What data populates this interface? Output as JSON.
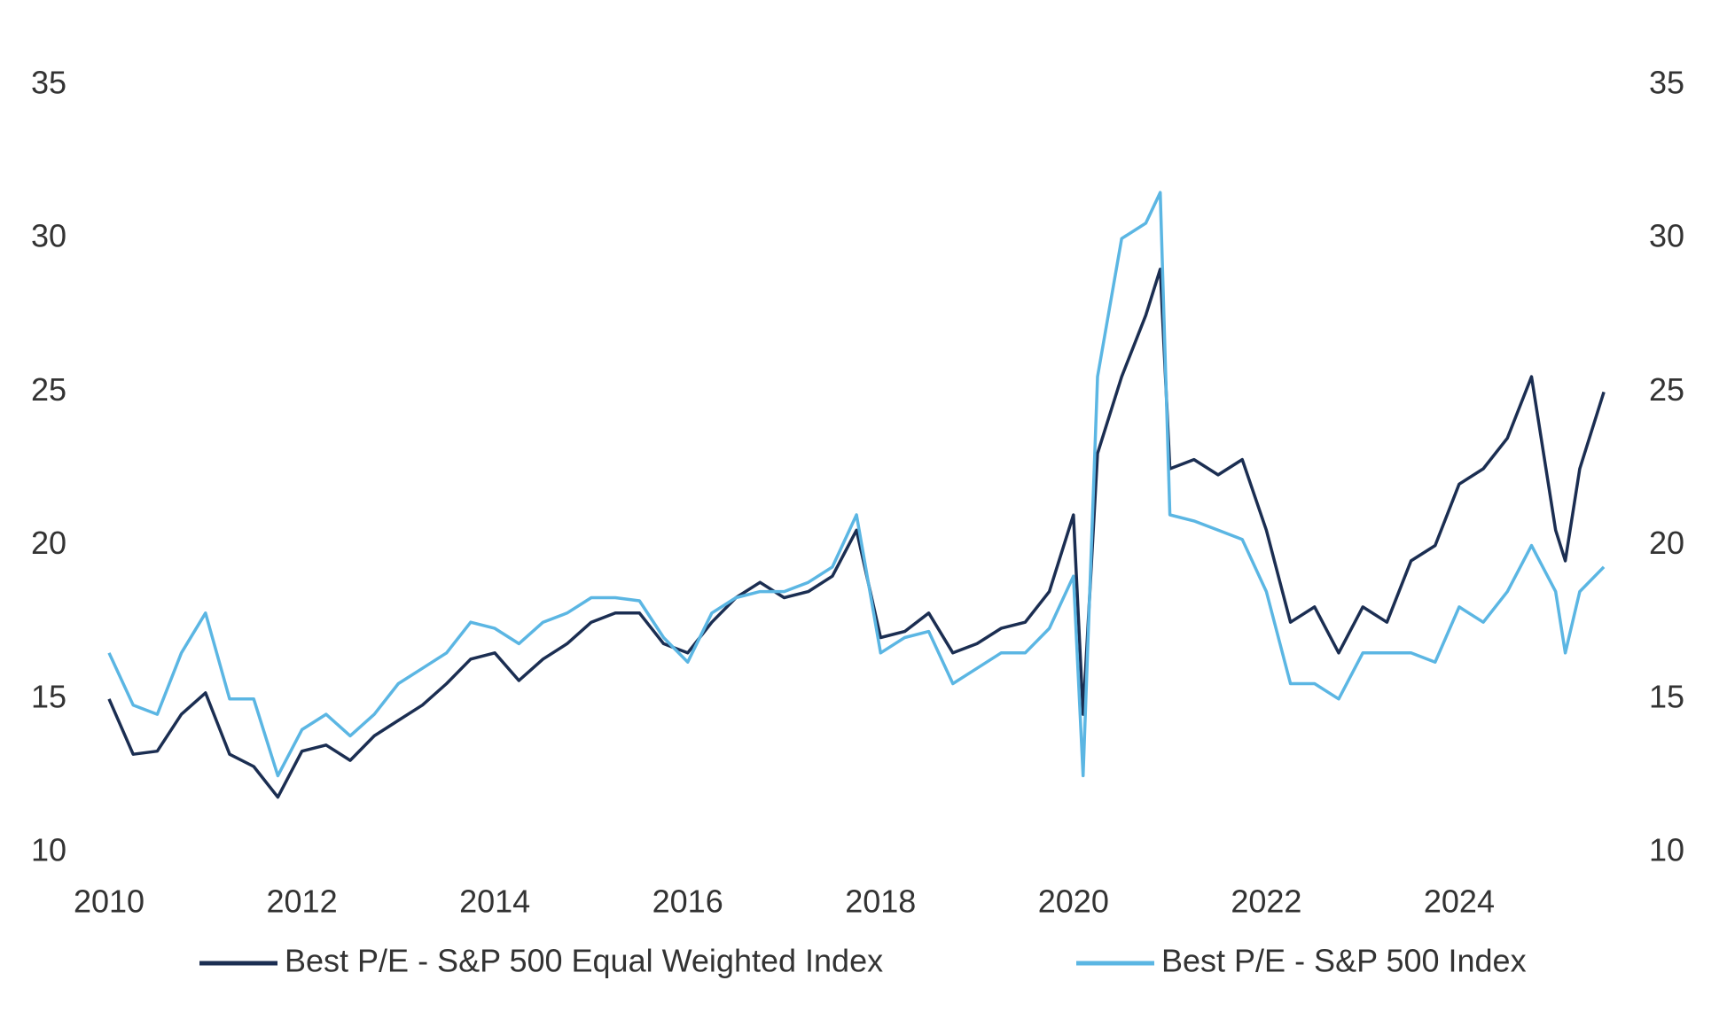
{
  "chart_data": {
    "type": "line",
    "x": [
      2010,
      2010.25,
      2010.5,
      2010.75,
      2011,
      2011.25,
      2011.5,
      2011.75,
      2012,
      2012.25,
      2012.5,
      2012.75,
      2013,
      2013.25,
      2013.5,
      2013.75,
      2014,
      2014.25,
      2014.5,
      2014.75,
      2015,
      2015.25,
      2015.5,
      2015.75,
      2016,
      2016.25,
      2016.5,
      2016.75,
      2017,
      2017.25,
      2017.5,
      2017.75,
      2018,
      2018.25,
      2018.5,
      2018.75,
      2019,
      2019.25,
      2019.5,
      2019.75,
      2020,
      2020.1,
      2020.25,
      2020.5,
      2020.75,
      2020.9,
      2021,
      2021.25,
      2021.5,
      2021.75,
      2022,
      2022.25,
      2022.5,
      2022.75,
      2023,
      2023.25,
      2023.5,
      2023.75,
      2024,
      2024.25,
      2024.5,
      2024.75,
      2025,
      2025.1,
      2025.25,
      2025.5
    ],
    "series": [
      {
        "name": "Best P/E - S&P 500 Equal Weighted Index",
        "color": "#1b2e52",
        "values": [
          15.0,
          13.2,
          13.3,
          14.5,
          15.2,
          13.2,
          12.8,
          11.8,
          13.3,
          13.5,
          13.0,
          13.8,
          14.3,
          14.8,
          15.5,
          16.3,
          16.5,
          15.6,
          16.3,
          16.8,
          17.5,
          17.8,
          17.8,
          16.8,
          16.5,
          17.5,
          18.3,
          18.8,
          18.3,
          18.5,
          19.0,
          20.5,
          17.0,
          17.2,
          17.8,
          16.5,
          16.8,
          17.3,
          17.5,
          18.5,
          21.0,
          14.5,
          23.0,
          25.5,
          27.5,
          29.0,
          22.5,
          22.8,
          22.3,
          22.8,
          20.5,
          17.5,
          18.0,
          16.5,
          18.0,
          17.5,
          19.5,
          20.0,
          22.0,
          22.5,
          23.5,
          25.5,
          20.5,
          19.5,
          22.5,
          25.0
        ]
      },
      {
        "name": "Best P/E - S&P 500 Index",
        "color": "#5bb6e3",
        "values": [
          16.5,
          14.8,
          14.5,
          16.5,
          17.8,
          15.0,
          15.0,
          12.5,
          14.0,
          14.5,
          13.8,
          14.5,
          15.5,
          16.0,
          16.5,
          17.5,
          17.3,
          16.8,
          17.5,
          17.8,
          18.3,
          18.3,
          18.2,
          17.0,
          16.2,
          17.8,
          18.3,
          18.5,
          18.5,
          18.8,
          19.3,
          21.0,
          16.5,
          17.0,
          17.2,
          15.5,
          16.0,
          16.5,
          16.5,
          17.3,
          19.0,
          12.5,
          25.5,
          30.0,
          30.5,
          31.5,
          21.0,
          20.8,
          20.5,
          20.2,
          18.5,
          15.5,
          15.5,
          15.0,
          16.5,
          16.5,
          16.5,
          16.2,
          18.0,
          17.5,
          18.5,
          20.0,
          18.5,
          16.5,
          18.5,
          19.3
        ]
      }
    ],
    "xlim": [
      2010,
      2025.6
    ],
    "xticks": [
      2010,
      2012,
      2014,
      2016,
      2018,
      2020,
      2022,
      2024
    ],
    "ylim": [
      10,
      35
    ],
    "yticks": [
      10,
      15,
      20,
      25,
      30,
      35
    ],
    "y2lim": [
      10,
      35
    ],
    "y2ticks": [
      10,
      15,
      20,
      25,
      30,
      35
    ],
    "legend": "bottom"
  }
}
